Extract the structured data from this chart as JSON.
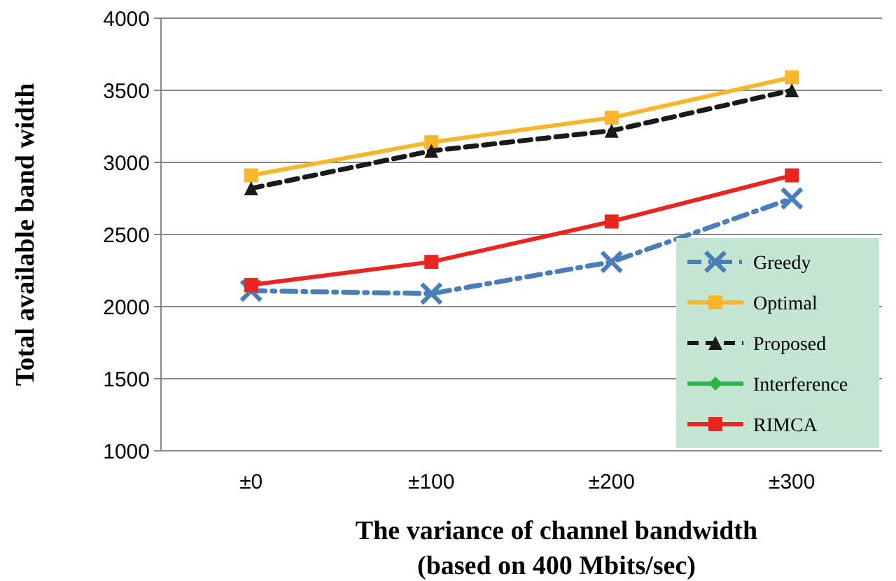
{
  "chart_data": {
    "type": "line",
    "xlabel": "The variance of channel bandwidth\n(based on 400 Mbits/sec)",
    "ylabel": "Total available band width",
    "categories": [
      "±0",
      "±100",
      "±200",
      "±300"
    ],
    "ylim": [
      1000,
      4000
    ],
    "yticks": [
      1000,
      1500,
      2000,
      2500,
      3000,
      3500,
      4000
    ],
    "grid": "y",
    "legend": "bottom right",
    "series": [
      {
        "name": "Greedy",
        "color": "#4a7ebb",
        "marker": "cross",
        "line_style": "dashdot",
        "values": [
          2110,
          2090,
          2310,
          2750
        ]
      },
      {
        "name": "Optimal",
        "color": "#f9b62c",
        "marker": "square",
        "line_style": "solid",
        "values": [
          2910,
          3140,
          3310,
          3590
        ]
      },
      {
        "name": "Proposed",
        "color": "#1a1a1a",
        "marker": "triangle",
        "line_style": "dashed",
        "values": [
          2820,
          3080,
          3220,
          3500
        ]
      },
      {
        "name": "Interference",
        "color": "#2eb34a",
        "marker": "diamond",
        "line_style": "solid",
        "values": [
          null,
          null,
          null,
          null
        ]
      },
      {
        "name": "RIMCA",
        "color": "#e8251f",
        "marker": "square",
        "line_style": "solid",
        "values": [
          2150,
          2310,
          2590,
          2910
        ]
      }
    ]
  }
}
